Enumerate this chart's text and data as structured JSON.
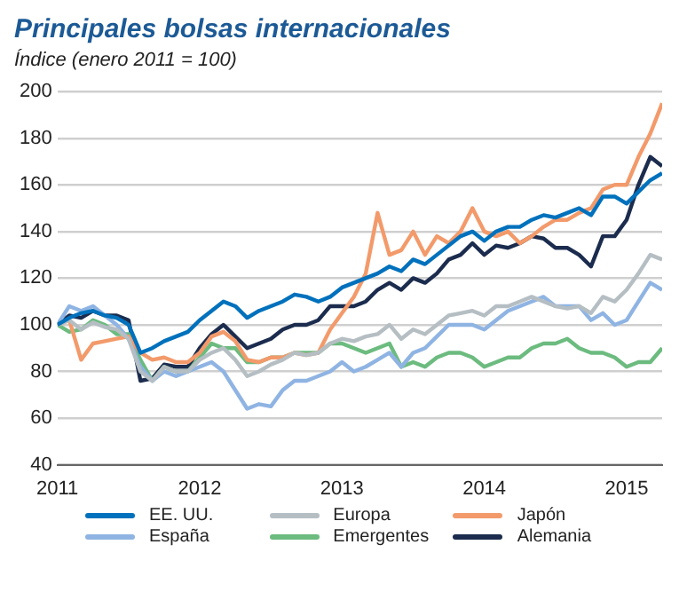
{
  "chart_data": {
    "type": "line",
    "title": "Principales bolsas internacionales",
    "subtitle": "Índice (enero 2011 = 100)",
    "x": [
      "2011-01",
      "2011-02",
      "2011-03",
      "2011-04",
      "2011-05",
      "2011-06",
      "2011-07",
      "2011-08",
      "2011-09",
      "2011-10",
      "2011-11",
      "2011-12",
      "2012-01",
      "2012-02",
      "2012-03",
      "2012-04",
      "2012-05",
      "2012-06",
      "2012-07",
      "2012-08",
      "2012-09",
      "2012-10",
      "2012-11",
      "2012-12",
      "2013-01",
      "2013-02",
      "2013-03",
      "2013-04",
      "2013-05",
      "2013-06",
      "2013-07",
      "2013-08",
      "2013-09",
      "2013-10",
      "2013-11",
      "2013-12",
      "2014-01",
      "2014-02",
      "2014-03",
      "2014-04",
      "2014-05",
      "2014-06",
      "2014-07",
      "2014-08",
      "2014-09",
      "2014-10",
      "2014-11",
      "2014-12",
      "2015-01",
      "2015-02",
      "2015-03",
      "2015-04"
    ],
    "series": [
      {
        "name": "EE. UU.",
        "color": "#0071bc",
        "values": [
          100,
          103,
          105,
          106,
          104,
          103,
          100,
          88,
          90,
          93,
          95,
          97,
          102,
          106,
          110,
          108,
          103,
          106,
          108,
          110,
          113,
          112,
          110,
          112,
          116,
          118,
          120,
          122,
          125,
          123,
          128,
          126,
          130,
          134,
          138,
          140,
          136,
          140,
          142,
          142,
          145,
          147,
          146,
          148,
          150,
          147,
          155,
          155,
          152,
          157,
          162,
          165
        ]
      },
      {
        "name": "Europa",
        "color": "#b5bec3",
        "values": [
          100,
          102,
          98,
          101,
          99,
          98,
          94,
          80,
          76,
          82,
          80,
          80,
          85,
          88,
          90,
          85,
          78,
          80,
          83,
          85,
          88,
          87,
          88,
          92,
          94,
          93,
          95,
          96,
          100,
          94,
          98,
          96,
          100,
          104,
          105,
          106,
          104,
          108,
          108,
          110,
          112,
          110,
          108,
          107,
          108,
          105,
          112,
          110,
          115,
          122,
          130,
          128
        ]
      },
      {
        "name": "Japón",
        "color": "#f39a6b",
        "values": [
          100,
          102,
          85,
          92,
          93,
          94,
          95,
          88,
          85,
          86,
          84,
          84,
          88,
          95,
          97,
          93,
          85,
          84,
          86,
          86,
          88,
          87,
          88,
          98,
          105,
          112,
          122,
          148,
          130,
          132,
          140,
          130,
          138,
          135,
          140,
          150,
          140,
          138,
          140,
          135,
          138,
          142,
          145,
          145,
          148,
          150,
          158,
          160,
          160,
          172,
          182,
          195
        ]
      },
      {
        "name": "España",
        "color": "#8fb4e3",
        "values": [
          100,
          108,
          106,
          108,
          104,
          100,
          94,
          82,
          76,
          80,
          78,
          80,
          82,
          84,
          80,
          72,
          64,
          66,
          65,
          72,
          76,
          76,
          78,
          80,
          84,
          80,
          82,
          85,
          88,
          82,
          88,
          90,
          95,
          100,
          100,
          100,
          98,
          102,
          106,
          108,
          110,
          112,
          108,
          108,
          108,
          102,
          105,
          100,
          102,
          110,
          118,
          115
        ]
      },
      {
        "name": "Emergentes",
        "color": "#6cbb7f",
        "values": [
          100,
          97,
          98,
          102,
          100,
          96,
          96,
          85,
          76,
          82,
          80,
          80,
          86,
          92,
          90,
          90,
          84,
          84,
          86,
          86,
          88,
          88,
          88,
          92,
          92,
          90,
          88,
          90,
          92,
          82,
          84,
          82,
          86,
          88,
          88,
          86,
          82,
          84,
          86,
          86,
          90,
          92,
          92,
          94,
          90,
          88,
          88,
          86,
          82,
          84,
          84,
          90
        ]
      },
      {
        "name": "Alemania",
        "color": "#1b2c4e",
        "values": [
          100,
          104,
          103,
          106,
          104,
          104,
          102,
          76,
          77,
          83,
          82,
          82,
          90,
          96,
          100,
          95,
          90,
          92,
          94,
          98,
          100,
          100,
          102,
          108,
          108,
          108,
          110,
          115,
          118,
          115,
          120,
          118,
          122,
          128,
          130,
          135,
          130,
          134,
          133,
          135,
          138,
          137,
          133,
          133,
          130,
          125,
          138,
          138,
          145,
          160,
          172,
          168
        ]
      }
    ],
    "xlim": [
      "2011-01",
      "2015-04"
    ],
    "xticks": [
      {
        "value": "2011",
        "label": "2011"
      },
      {
        "value": "2012",
        "label": "2012"
      },
      {
        "value": "2013",
        "label": "2013"
      },
      {
        "value": "2014",
        "label": "2014"
      },
      {
        "value": "2015",
        "label": "2015"
      }
    ],
    "ylim": [
      40,
      200
    ],
    "yticks": [
      40,
      60,
      80,
      100,
      120,
      140,
      160,
      180,
      200
    ],
    "grid": "y",
    "legend": "bottom",
    "marker": "none",
    "line_style": "solid"
  }
}
